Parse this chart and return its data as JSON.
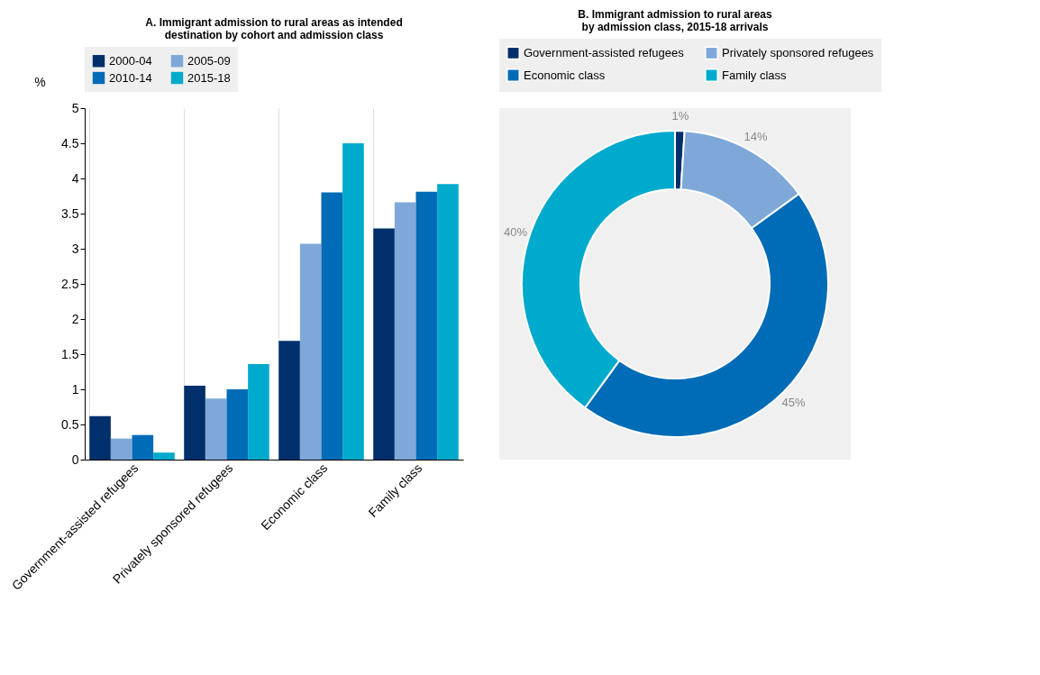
{
  "chart_data": [
    {
      "type": "bar",
      "title": "A. Immigrant admission to rural areas as intended destination by cohort and admission class",
      "ylabel": "%",
      "categories": [
        "Government-assisted refugees",
        "Privately sponsored refugees",
        "Economic class",
        "Family class"
      ],
      "series": [
        {
          "name": "2000-04",
          "color": "#002f6c",
          "values": [
            0.62,
            1.05,
            1.69,
            3.29
          ]
        },
        {
          "name": "2005-09",
          "color": "#7fa8d9",
          "values": [
            0.3,
            0.87,
            3.07,
            3.66
          ]
        },
        {
          "name": "2010-14",
          "color": "#006bb6",
          "values": [
            0.35,
            1.0,
            3.8,
            3.81
          ]
        },
        {
          "name": "2015-18",
          "color": "#00aacc",
          "values": [
            0.1,
            1.36,
            4.5,
            3.92
          ]
        }
      ],
      "ylim": [
        0,
        5
      ],
      "yticks": [
        0,
        0.5,
        1,
        1.5,
        2,
        2.5,
        3,
        3.5,
        4,
        4.5,
        5
      ],
      "grid": "x",
      "legend": "top"
    },
    {
      "type": "donut",
      "title": "B. Immigrant admission to rural areas by admission class, 2015-18 arrivals",
      "categories": [
        "Government-assisted refugees",
        "Privately sponsored refugees",
        "Economic class",
        "Family class"
      ],
      "values": [
        1,
        14,
        45,
        40
      ],
      "colors": [
        "#002f6c",
        "#7fa8d9",
        "#006bb6",
        "#00aacc"
      ],
      "value_labels": [
        "1%",
        "14%",
        "45%",
        "40%"
      ],
      "legend": "top"
    }
  ]
}
